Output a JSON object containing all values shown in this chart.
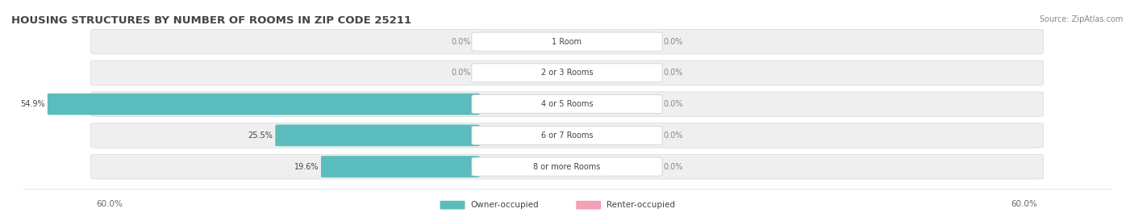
{
  "title": "HOUSING STRUCTURES BY NUMBER OF ROOMS IN ZIP CODE 25211",
  "source": "Source: ZipAtlas.com",
  "categories": [
    "1 Room",
    "2 or 3 Rooms",
    "4 or 5 Rooms",
    "6 or 7 Rooms",
    "8 or more Rooms"
  ],
  "owner_values": [
    0.0,
    0.0,
    54.9,
    25.5,
    19.6
  ],
  "renter_values": [
    0.0,
    0.0,
    0.0,
    0.0,
    0.0
  ],
  "max_val": 60.0,
  "owner_color": "#5bbcbe",
  "renter_color": "#f4a0b5",
  "bar_bg_color": "#efefef",
  "bar_border_color": "#d8d8d8",
  "label_color": "#555555",
  "title_color": "#444444",
  "fig_bg_color": "#ffffff",
  "axis_label_left": "60.0%",
  "axis_label_right": "60.0%",
  "legend_owner": "Owner-occupied",
  "legend_renter": "Renter-occupied"
}
